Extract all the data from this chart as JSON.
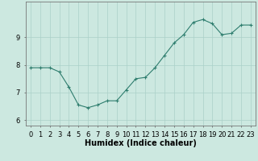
{
  "x": [
    0,
    1,
    2,
    3,
    4,
    5,
    6,
    7,
    8,
    9,
    10,
    11,
    12,
    13,
    14,
    15,
    16,
    17,
    18,
    19,
    20,
    21,
    22,
    23
  ],
  "y": [
    7.9,
    7.9,
    7.9,
    7.75,
    7.2,
    6.55,
    6.45,
    6.55,
    6.7,
    6.7,
    7.1,
    7.5,
    7.55,
    7.9,
    8.35,
    8.8,
    9.1,
    9.55,
    9.65,
    9.5,
    9.1,
    9.15,
    9.45,
    9.45
  ],
  "line_color": "#2e7d6e",
  "marker": "+",
  "marker_color": "#2e7d6e",
  "bg_color": "#cce8e0",
  "grid_color": "#aad0c8",
  "axis_color": "#2e7d6e",
  "xlabel": "Humidex (Indice chaleur)",
  "xlabel_fontsize": 7,
  "tick_fontsize": 6,
  "ylim": [
    5.8,
    10.3
  ],
  "yticks": [
    6,
    7,
    8,
    9
  ],
  "xticks": [
    0,
    1,
    2,
    3,
    4,
    5,
    6,
    7,
    8,
    9,
    10,
    11,
    12,
    13,
    14,
    15,
    16,
    17,
    18,
    19,
    20,
    21,
    22,
    23
  ],
  "xtick_labels": [
    "0",
    "1",
    "2",
    "3",
    "4",
    "5",
    "6",
    "7",
    "8",
    "9",
    "10",
    "11",
    "12",
    "13",
    "14",
    "15",
    "16",
    "17",
    "18",
    "19",
    "20",
    "21",
    "22",
    "23"
  ]
}
